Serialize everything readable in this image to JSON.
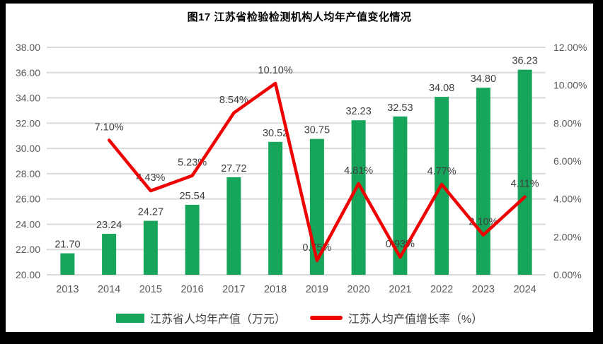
{
  "chart_data": {
    "type": "combo-bar-line",
    "title": "图17  江苏省检验检测机构人均年产值变化情况",
    "categories": [
      "2013",
      "2014",
      "2015",
      "2016",
      "2017",
      "2018",
      "2019",
      "2020",
      "2021",
      "2022",
      "2023",
      "2024"
    ],
    "series": [
      {
        "name": "江苏省人均年产值（万元）",
        "type": "bar",
        "axis": "left",
        "color": "#16A55A",
        "values": [
          21.7,
          23.24,
          24.27,
          25.54,
          27.72,
          30.52,
          30.75,
          32.23,
          32.53,
          34.08,
          34.8,
          36.23
        ],
        "labels": [
          "21.70",
          "23.24",
          "24.27",
          "25.54",
          "27.72",
          "30.52",
          "30.75",
          "32.23",
          "32.53",
          "34.08",
          "34.80",
          "36.23"
        ]
      },
      {
        "name": "江苏人均产值增长率（%）",
        "type": "line",
        "axis": "right",
        "color": "#EE0000",
        "values": [
          null,
          7.1,
          4.43,
          5.23,
          8.54,
          10.1,
          0.75,
          4.81,
          0.93,
          4.77,
          2.1,
          4.11
        ],
        "labels": [
          null,
          "7.10%",
          "4.43%",
          "5.23%",
          "8.54%",
          "10.10%",
          "0.75%",
          "4.81%",
          "0.93%",
          "4.77%",
          "2.10%",
          "4.11%"
        ]
      }
    ],
    "left_axis": {
      "min": 20,
      "max": 38,
      "tick_values": [
        20,
        22,
        24,
        26,
        28,
        30,
        32,
        34,
        36,
        38
      ],
      "tick_labels": [
        "20.00",
        "22.00",
        "24.00",
        "26.00",
        "28.00",
        "30.00",
        "32.00",
        "34.00",
        "36.00",
        "38.00"
      ]
    },
    "right_axis": {
      "min": 0,
      "max": 12,
      "tick_values": [
        0,
        2,
        4,
        6,
        8,
        10,
        12
      ],
      "tick_labels": [
        "0.00%",
        "2.00%",
        "4.00%",
        "6.00%",
        "8.00%",
        "10.00%",
        "12.00%"
      ]
    },
    "grid": true,
    "legend_position": "bottom"
  },
  "colors": {
    "bar": "#16A55A",
    "line": "#EE0000",
    "grid": "#D9D9D9",
    "axis_text": "#595959",
    "label_text": "#404040",
    "title_text": "#000000",
    "frame": "#000000",
    "background": "#FFFFFF"
  }
}
